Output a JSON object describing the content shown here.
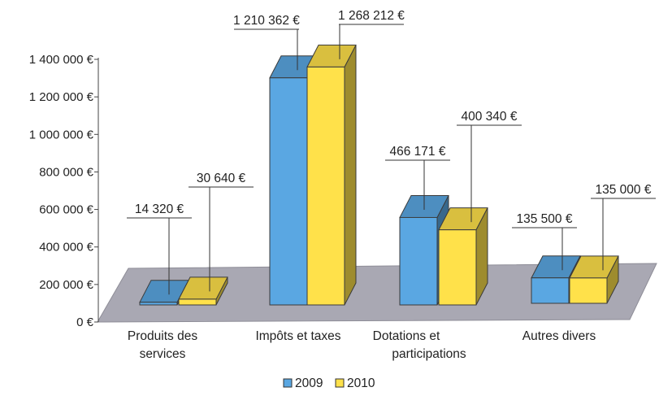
{
  "chart_data": {
    "type": "bar",
    "title": "",
    "xlabel": "",
    "ylabel": "",
    "ylim": [
      0,
      1400000
    ],
    "yticks": [
      0,
      200000,
      400000,
      600000,
      800000,
      1000000,
      1200000,
      1400000
    ],
    "ytick_labels": [
      "0 €",
      "200 000 €",
      "400 000 €",
      "600 000 €",
      "800 000 €",
      "1 000 000 €",
      "1 200 000 €",
      "1 400 000 €"
    ],
    "categories": [
      [
        "Produits des",
        "services"
      ],
      [
        "Impôts et taxes"
      ],
      [
        "Dotations et",
        "participations"
      ],
      [
        "Autres divers"
      ]
    ],
    "series": [
      {
        "name": "2009",
        "color": "#5aa7e2",
        "values": [
          14320,
          1210362,
          466171,
          135500
        ],
        "labels": [
          "14 320 €",
          "1 210 362 €",
          "466 171 €",
          "135 500 €"
        ]
      },
      {
        "name": "2010",
        "color": "#ffe14a",
        "values": [
          30640,
          1268212,
          400340,
          135000
        ],
        "labels": [
          "30 640 €",
          "1 268 212 €",
          "400 340 €",
          "135 000 €"
        ]
      }
    ],
    "grid": false,
    "legend": "bottom",
    "floor_color": "#a9a8b3"
  }
}
